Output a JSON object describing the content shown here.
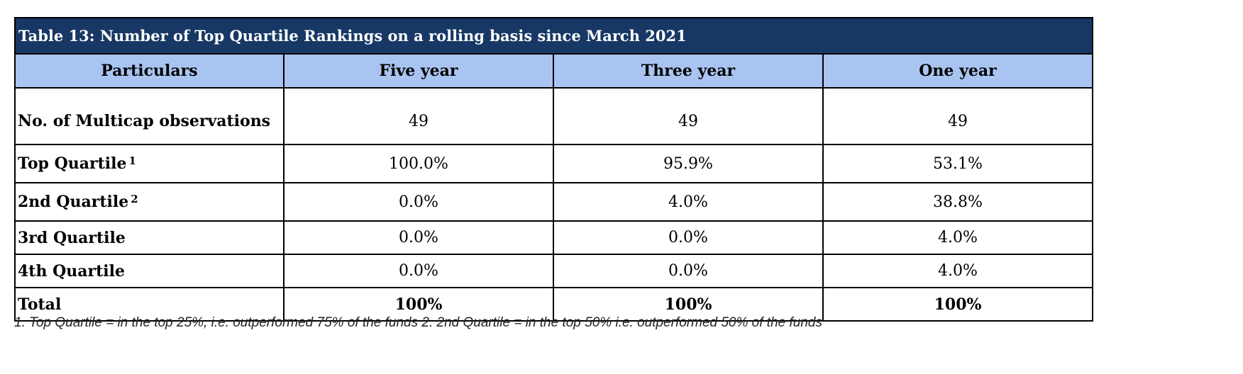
{
  "table": {
    "title": "Table 13: Number of Top Quartile Rankings on a rolling basis since March 2021",
    "headers": [
      "Particulars",
      "Five year",
      "Three year",
      "One year"
    ],
    "rows": [
      {
        "label": "No. of Multicap observations",
        "sup": "",
        "values": [
          "49",
          "49",
          "49"
        ]
      },
      {
        "label": "Top Quartile",
        "sup": "1",
        "values": [
          "100.0%",
          "95.9%",
          "53.1%"
        ]
      },
      {
        "label": "2nd Quartile",
        "sup": "2",
        "values": [
          "0.0%",
          "4.0%",
          "38.8%"
        ]
      },
      {
        "label": "3rd Quartile",
        "sup": "",
        "values": [
          "0.0%",
          "0.0%",
          "4.0%"
        ]
      },
      {
        "label": "4th Quartile",
        "sup": "",
        "values": [
          "0.0%",
          "0.0%",
          "4.0%"
        ]
      },
      {
        "label": "Total",
        "sup": "",
        "values": [
          "100%",
          "100%",
          "100%"
        ]
      }
    ]
  },
  "footnote": "1. Top Quartile = in the top 25%, i.e. outperformed 75% of the funds 2. 2nd Quartile = in the top 50% i.e. outperformed 50% of the funds",
  "colors": {
    "title_bg": "#173864",
    "header_bg": "#a9c4f0"
  }
}
